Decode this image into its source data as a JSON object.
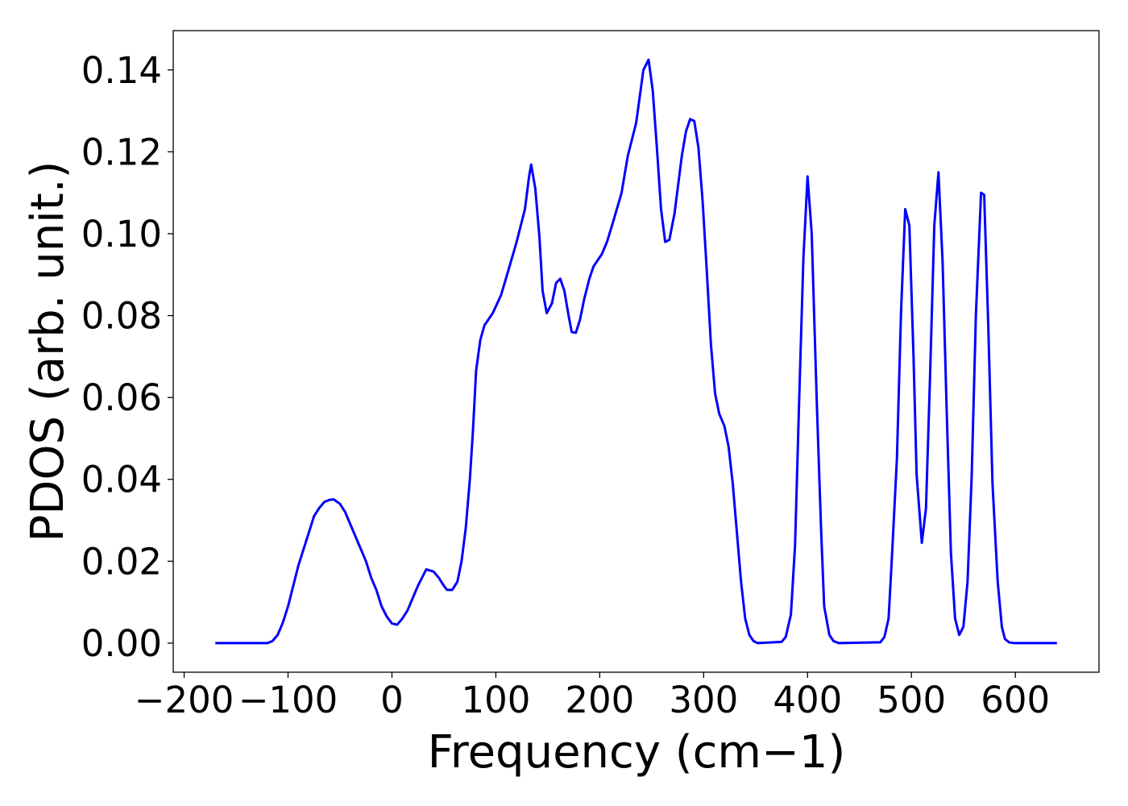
{
  "chart_data": {
    "type": "line",
    "x_label": "Frequency (cm−1)",
    "y_label": "PDOS (arb. unit.)",
    "xlim": [
      -210.5,
      680.5
    ],
    "ylim": [
      -0.0071,
      0.1496
    ],
    "xticks": [
      {
        "value": -200,
        "label": "−200"
      },
      {
        "value": -100,
        "label": "−100"
      },
      0,
      100,
      200,
      300,
      400,
      500,
      600
    ],
    "yticks": [
      {
        "value": 0,
        "label": "0.00"
      },
      {
        "value": 0.02,
        "label": "0.02"
      },
      {
        "value": 0.04,
        "label": "0.04"
      },
      {
        "value": 0.06,
        "label": "0.06"
      },
      {
        "value": 0.08,
        "label": "0.08"
      },
      {
        "value": 0.1,
        "label": "0.10"
      },
      {
        "value": 0.12,
        "label": "0.12"
      },
      {
        "value": 0.14,
        "label": "0.14"
      }
    ],
    "grid": false,
    "series": [
      {
        "color": "#0000ff",
        "x": [
          -170,
          -120,
          -115,
          -110,
          -105,
          -100,
          -95,
          -90,
          -85,
          -80,
          -75,
          -70,
          -65,
          -60,
          -56,
          -50,
          -45,
          -40,
          -35,
          -30,
          -25,
          -20,
          -15,
          -10,
          -5,
          0,
          5,
          10,
          15,
          20,
          25,
          30,
          33,
          40,
          45,
          50,
          53,
          58,
          63,
          67,
          71,
          75,
          78,
          81,
          85,
          89,
          97,
          105,
          112,
          120,
          128,
          132,
          134,
          138,
          142,
          145,
          149,
          154,
          158,
          162,
          166,
          170,
          173,
          177,
          181,
          185,
          190,
          194,
          202,
          207,
          213,
          221,
          227,
          235,
          242,
          247,
          251,
          255,
          259,
          263,
          267,
          272,
          279,
          283,
          287,
          291,
          295,
          299,
          303,
          307,
          311,
          315,
          320,
          324,
          328,
          332,
          336,
          340,
          344,
          348,
          352,
          375,
          379,
          384,
          388,
          392,
          396,
          400,
          404,
          409,
          413,
          416,
          421,
          425,
          430,
          470,
          474,
          478,
          481,
          486,
          490,
          494,
          498,
          502,
          505,
          510,
          514,
          518,
          522,
          526,
          530,
          534,
          538,
          542,
          546,
          550,
          554,
          558,
          562,
          567,
          570,
          574,
          578,
          583,
          587,
          590,
          594,
          599,
          640
        ],
        "values": [
          0,
          0,
          0.0005,
          0.002,
          0.005,
          0.009,
          0.014,
          0.019,
          0.023,
          0.027,
          0.031,
          0.033,
          0.0345,
          0.035,
          0.0351,
          0.034,
          0.032,
          0.029,
          0.026,
          0.023,
          0.02,
          0.016,
          0.013,
          0.009,
          0.0065,
          0.0048,
          0.0045,
          0.006,
          0.008,
          0.011,
          0.014,
          0.0165,
          0.018,
          0.0175,
          0.016,
          0.014,
          0.013,
          0.013,
          0.015,
          0.02,
          0.028,
          0.04,
          0.052,
          0.0665,
          0.074,
          0.0776,
          0.0806,
          0.085,
          0.091,
          0.098,
          0.106,
          0.114,
          0.1169,
          0.111,
          0.099,
          0.086,
          0.0806,
          0.083,
          0.088,
          0.089,
          0.086,
          0.08,
          0.076,
          0.0758,
          0.079,
          0.084,
          0.089,
          0.092,
          0.095,
          0.098,
          0.103,
          0.11,
          0.119,
          0.127,
          0.14,
          0.1425,
          0.135,
          0.121,
          0.106,
          0.098,
          0.0985,
          0.105,
          0.119,
          0.125,
          0.128,
          0.1275,
          0.121,
          0.108,
          0.091,
          0.073,
          0.061,
          0.056,
          0.053,
          0.048,
          0.039,
          0.027,
          0.015,
          0.006,
          0.002,
          0.0005,
          0,
          0.0003,
          0.0015,
          0.007,
          0.024,
          0.06,
          0.094,
          0.114,
          0.1,
          0.058,
          0.028,
          0.009,
          0.002,
          0.0005,
          0,
          0.0002,
          0.0015,
          0.006,
          0.02,
          0.045,
          0.081,
          0.106,
          0.102,
          0.07,
          0.041,
          0.0245,
          0.033,
          0.066,
          0.102,
          0.115,
          0.093,
          0.056,
          0.022,
          0.006,
          0.002,
          0.004,
          0.015,
          0.041,
          0.08,
          0.11,
          0.1095,
          0.077,
          0.039,
          0.015,
          0.004,
          0.001,
          0.0002,
          0,
          0
        ]
      }
    ]
  }
}
